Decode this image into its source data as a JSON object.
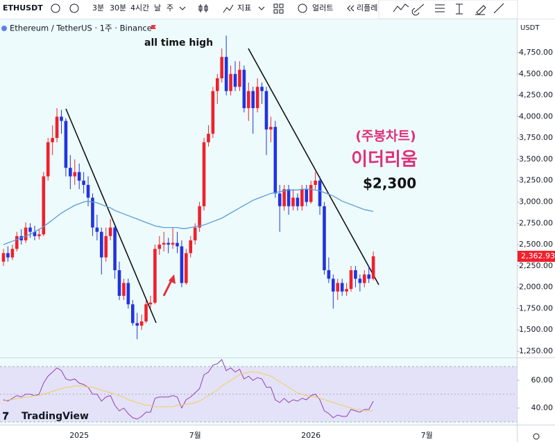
{
  "toolbar": {
    "symbol": "ETHUSDT",
    "intervals": [
      "3분",
      "30분",
      "4시간",
      "날",
      "주"
    ],
    "indicators": "지표",
    "alerts": "얼러트",
    "replay": "리플레"
  },
  "header": {
    "legend": "Ethereum / TetherUS · 1주 · Binance",
    "currency": "USDT",
    "watermark": "TradingView"
  },
  "chart_data": [
    {
      "type": "candlestick",
      "annotations": [
        "all time high",
        "(주봉차트)",
        "이더리움",
        "$2,300"
      ],
      "categories": [
        null,
        null,
        null,
        null,
        null,
        null,
        null,
        null,
        null,
        null,
        null,
        null,
        null,
        null,
        null,
        null,
        null,
        "2025",
        null,
        null,
        null,
        null,
        null,
        null,
        null,
        null,
        null,
        null,
        null,
        null,
        null,
        null,
        null,
        null,
        null,
        null,
        null,
        null,
        null,
        null,
        null,
        null,
        null,
        "7월",
        null,
        null,
        null,
        null,
        null,
        null,
        null,
        null,
        null,
        null,
        null,
        null,
        null,
        null,
        null,
        null,
        null,
        null,
        null,
        null,
        null,
        null,
        null,
        null,
        null,
        "2026",
        null,
        null,
        null,
        null,
        null,
        null,
        null,
        null,
        null,
        null,
        null,
        null,
        null,
        null,
        null,
        null,
        null,
        null,
        null,
        null,
        null,
        null,
        null,
        null,
        null,
        "7월"
      ],
      "ohlc": [
        [
          2300,
          2450,
          2250,
          2400
        ],
        [
          2400,
          2480,
          2300,
          2350
        ],
        [
          2350,
          2500,
          2320,
          2450
        ],
        [
          2450,
          2650,
          2420,
          2600
        ],
        [
          2600,
          2680,
          2500,
          2550
        ],
        [
          2550,
          2760,
          2520,
          2700
        ],
        [
          2700,
          2750,
          2580,
          2650
        ],
        [
          2650,
          2720,
          2550,
          2600
        ],
        [
          2600,
          2680,
          2560,
          2620
        ],
        [
          2620,
          3350,
          2600,
          3300
        ],
        [
          3300,
          3750,
          3250,
          3700
        ],
        [
          3700,
          3900,
          3550,
          3750
        ],
        [
          3750,
          4100,
          3700,
          4000
        ],
        [
          4000,
          4080,
          3800,
          3950
        ],
        [
          3950,
          3980,
          3300,
          3400
        ],
        [
          3400,
          3550,
          3150,
          3300
        ],
        [
          3300,
          3500,
          3200,
          3350
        ],
        [
          3350,
          3450,
          3150,
          3250
        ],
        [
          3250,
          3350,
          3100,
          3200
        ],
        [
          3200,
          3300,
          2950,
          3050
        ],
        [
          3050,
          3100,
          2600,
          2700
        ],
        [
          2700,
          2850,
          2550,
          2650
        ],
        [
          2650,
          2700,
          2150,
          2350
        ],
        [
          2350,
          2700,
          2300,
          2600
        ],
        [
          2600,
          2800,
          2550,
          2700
        ],
        [
          2700,
          2720,
          2100,
          2200
        ],
        [
          2200,
          2300,
          1850,
          1900
        ],
        [
          1900,
          2100,
          1850,
          2050
        ],
        [
          2050,
          2100,
          1750,
          1800
        ],
        [
          1800,
          1850,
          1550,
          1580
        ],
        [
          1580,
          1700,
          1390,
          1550
        ],
        [
          1550,
          1680,
          1500,
          1600
        ],
        [
          1600,
          1850,
          1580,
          1800
        ],
        [
          1800,
          1900,
          1750,
          1820
        ],
        [
          1820,
          2500,
          1800,
          2450
        ],
        [
          2450,
          2600,
          2380,
          2500
        ],
        [
          2500,
          2650,
          2420,
          2520
        ],
        [
          2520,
          2580,
          2400,
          2500
        ],
        [
          2500,
          2700,
          2450,
          2520
        ],
        [
          2520,
          2650,
          2400,
          2480
        ],
        [
          2480,
          2550,
          2000,
          2050
        ],
        [
          2050,
          2450,
          2030,
          2400
        ],
        [
          2400,
          2600,
          2350,
          2550
        ],
        [
          2550,
          2750,
          2500,
          2700
        ],
        [
          2700,
          3000,
          2650,
          2950
        ],
        [
          2950,
          3750,
          2900,
          3700
        ],
        [
          3700,
          3900,
          3650,
          3800
        ],
        [
          3800,
          4350,
          3750,
          4300
        ],
        [
          4300,
          4500,
          4150,
          4450
        ],
        [
          4450,
          4800,
          4400,
          4700
        ],
        [
          4700,
          4950,
          4250,
          4300
        ],
        [
          4300,
          4600,
          4250,
          4500
        ],
        [
          4500,
          4650,
          4300,
          4350
        ],
        [
          4350,
          4650,
          4300,
          4550
        ],
        [
          4550,
          4600,
          4050,
          4100
        ],
        [
          4100,
          4400,
          3950,
          4300
        ],
        [
          4300,
          4350,
          3800,
          4100
        ],
        [
          4100,
          4450,
          4050,
          4350
        ],
        [
          4350,
          4400,
          4150,
          4300
        ],
        [
          4300,
          4350,
          3550,
          3850
        ],
        [
          3850,
          4000,
          3700,
          3880
        ],
        [
          3880,
          3950,
          3050,
          3100
        ],
        [
          3100,
          3200,
          2650,
          2950
        ],
        [
          2950,
          3200,
          2900,
          3150
        ],
        [
          3150,
          3200,
          2850,
          2950
        ],
        [
          2950,
          3150,
          2900,
          3050
        ],
        [
          3050,
          3100,
          2900,
          2950
        ],
        [
          2950,
          3200,
          2900,
          3150
        ],
        [
          3150,
          3200,
          2950,
          3000
        ],
        [
          3000,
          3250,
          2980,
          3200
        ],
        [
          3200,
          3350,
          3150,
          3250
        ],
        [
          3250,
          3300,
          2850,
          2950
        ],
        [
          2950,
          3000,
          2150,
          2200
        ],
        [
          2200,
          2350,
          2050,
          2100
        ],
        [
          2100,
          2150,
          1750,
          1950
        ],
        [
          1950,
          2100,
          1850,
          2050
        ],
        [
          2050,
          2100,
          1900,
          1950
        ],
        [
          1950,
          2050,
          1900,
          1980
        ],
        [
          1980,
          2250,
          1950,
          2200
        ],
        [
          2200,
          2250,
          2000,
          2100
        ],
        [
          2100,
          2150,
          1950,
          2050
        ],
        [
          2050,
          2200,
          2000,
          2150
        ],
        [
          2150,
          2250,
          2050,
          2100
        ],
        [
          2100,
          2420,
          2080,
          2362.93
        ],
        null,
        null,
        null,
        null,
        null,
        null,
        null,
        null,
        null,
        null,
        null,
        null
      ],
      "last_value_label": "2,362.93",
      "up_color": "#f0202c",
      "down_color": "#2233dd",
      "series": [
        {
          "color": "#5b9bd5",
          "values": [
            2500,
            2520,
            2540,
            2560,
            2580,
            2600,
            2620,
            2650,
            2680,
            2710,
            2750,
            2790,
            2830,
            2870,
            2900,
            2930,
            2960,
            2980,
            3000,
            3010,
            3000,
            2990,
            2970,
            2950,
            2930,
            2900,
            2880,
            2860,
            2840,
            2820,
            2800,
            2780,
            2760,
            2740,
            2720,
            2710,
            2700,
            2700,
            2700,
            2700,
            2690,
            2690,
            2700,
            2710,
            2720,
            2730,
            2750,
            2770,
            2790,
            2810,
            2840,
            2870,
            2900,
            2930,
            2960,
            2990,
            3020,
            3040,
            3060,
            3080,
            3100,
            3110,
            3120,
            3130,
            3140,
            3140,
            3140,
            3150,
            3150,
            3150,
            3140,
            3130,
            3110,
            3090,
            3070,
            3040,
            3010,
            2990,
            2970,
            2950,
            2930,
            2910,
            2900,
            2890,
            null,
            null,
            null,
            null,
            null,
            null,
            null,
            null,
            null,
            null,
            null,
            null
          ]
        }
      ],
      "ylim": [
        1185,
        5124
      ],
      "yticks": [
        {
          "value": 1250,
          "label": "1,250.00"
        },
        {
          "value": 1500,
          "label": "1,500.00"
        },
        {
          "value": 1750,
          "label": "1,750.00"
        },
        {
          "value": 2000,
          "label": "2,000.00"
        },
        {
          "value": 2250,
          "label": "2,250.00"
        },
        {
          "value": 2500,
          "label": "2,500.00"
        },
        {
          "value": 2750,
          "label": "2,750.00"
        },
        {
          "value": 3000,
          "label": "3,000.00"
        },
        {
          "value": 3250,
          "label": "3,250.00"
        },
        {
          "value": 3500,
          "label": "3,500.00"
        },
        {
          "value": 3750,
          "label": "3,750.00"
        },
        {
          "value": 4000,
          "label": "4,000.00"
        },
        {
          "value": 4250,
          "label": "4,250.00"
        },
        {
          "value": 4500,
          "label": "4,500.00"
        },
        {
          "value": 4750,
          "label": "4,750.00"
        }
      ],
      "grid": false
    },
    {
      "type": "line",
      "series": [
        {
          "color": "#8e3fb8",
          "values": [
            46,
            45,
            47,
            49,
            48,
            50,
            50,
            49,
            50,
            58,
            63,
            66,
            69,
            67,
            61,
            60,
            61,
            58,
            57,
            55,
            50,
            50,
            45,
            48,
            49,
            42,
            38,
            40,
            36,
            33,
            32,
            34,
            37,
            37,
            47,
            48,
            48,
            48,
            49,
            48,
            40,
            46,
            48,
            51,
            54,
            64,
            66,
            71,
            72,
            75,
            67,
            69,
            66,
            68,
            61,
            63,
            60,
            62,
            61,
            55,
            55,
            46,
            44,
            47,
            44,
            46,
            45,
            47,
            46,
            49,
            50,
            46,
            38,
            36,
            33,
            35,
            34,
            34,
            39,
            38,
            37,
            39,
            39,
            45,
            null,
            null,
            null,
            null,
            null,
            null,
            null,
            null,
            null,
            null,
            null,
            null
          ]
        },
        {
          "color": "#f2cc5a",
          "values": [
            45,
            46,
            46,
            47,
            47,
            48,
            48,
            49,
            49,
            50,
            51,
            52,
            53,
            54,
            55,
            55,
            56,
            56,
            56,
            55,
            55,
            54,
            53,
            52,
            51,
            50,
            49,
            48,
            46,
            45,
            44,
            43,
            42,
            42,
            41,
            41,
            41,
            41,
            41,
            42,
            42,
            43,
            43,
            44,
            45,
            47,
            49,
            51,
            53,
            56,
            58,
            60,
            62,
            64,
            65,
            66,
            66,
            66,
            65,
            64,
            63,
            61,
            59,
            57,
            55,
            53,
            51,
            50,
            49,
            48,
            48,
            47,
            46,
            45,
            44,
            43,
            42,
            41,
            40,
            39,
            39,
            38,
            38,
            38,
            null,
            null,
            null,
            null,
            null,
            null,
            null,
            null,
            null,
            null,
            null,
            null
          ]
        }
      ],
      "band": [
        30,
        70
      ],
      "midline": 50,
      "ylim": [
        28.5,
        76
      ],
      "yticks": [
        {
          "value": 60,
          "label": "60.00"
        },
        {
          "value": 40,
          "label": "40.00"
        }
      ]
    }
  ]
}
